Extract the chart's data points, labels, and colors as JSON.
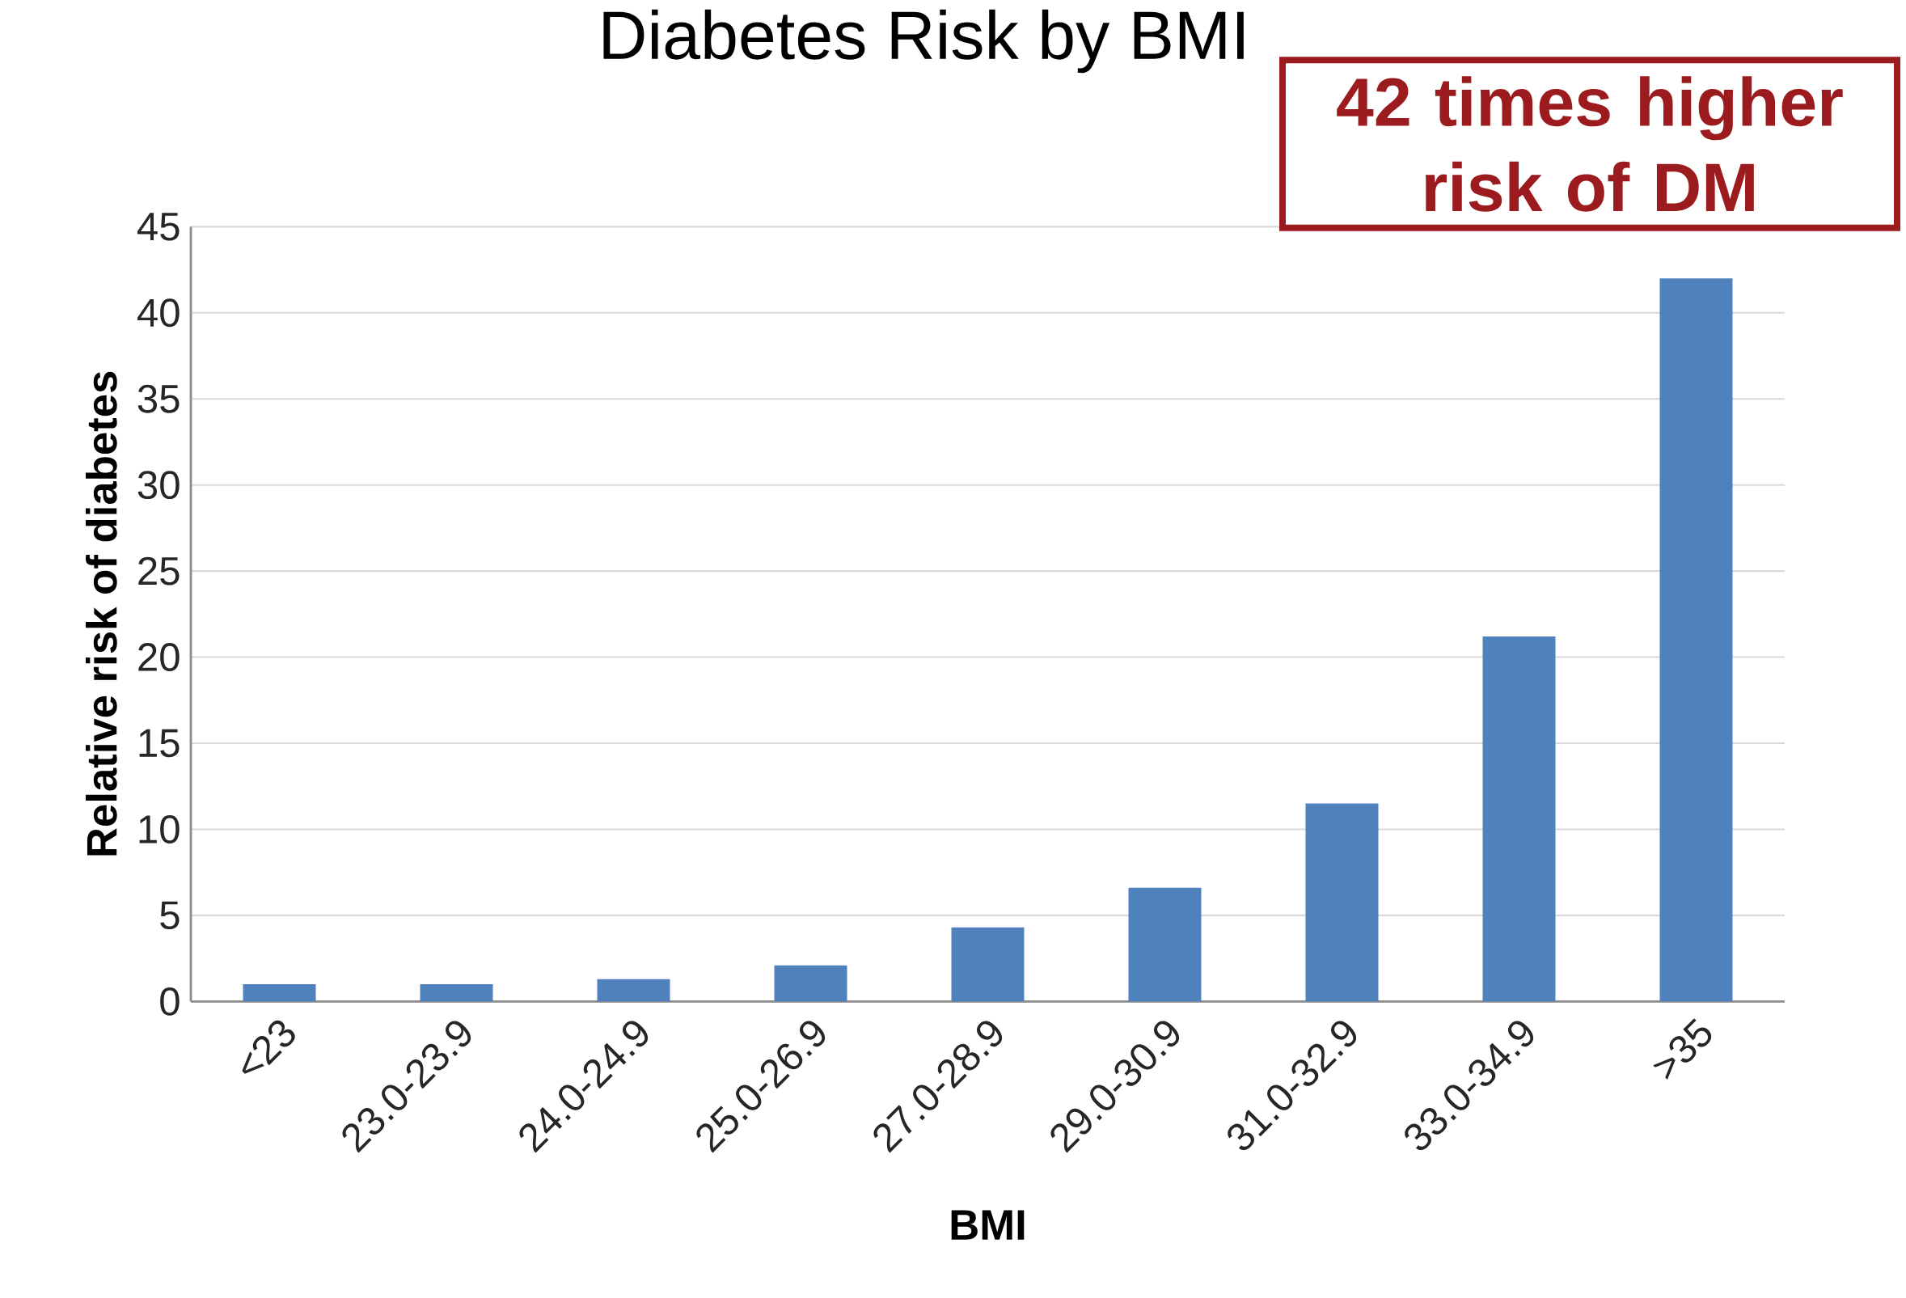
{
  "chart_data": {
    "type": "bar",
    "title": "Diabetes Risk by BMI",
    "xlabel": "BMI",
    "ylabel": "Relative risk of diabetes",
    "categories": [
      "<23",
      "23.0-23.9",
      "24.0-24.9",
      "25.0-26.9",
      "27.0-28.9",
      "29.0-30.9",
      "31.0-32.9",
      "33.0-34.9",
      ">35"
    ],
    "values": [
      1.0,
      1.0,
      1.3,
      2.1,
      4.3,
      6.6,
      11.5,
      21.2,
      42
    ],
    "color": "#4f81bd",
    "ylim": [
      0,
      45
    ],
    "yticks": [
      0,
      5,
      10,
      15,
      20,
      25,
      30,
      35,
      40,
      45
    ],
    "grid": "y",
    "annotations": [
      "42 times higher risk of DM"
    ]
  }
}
